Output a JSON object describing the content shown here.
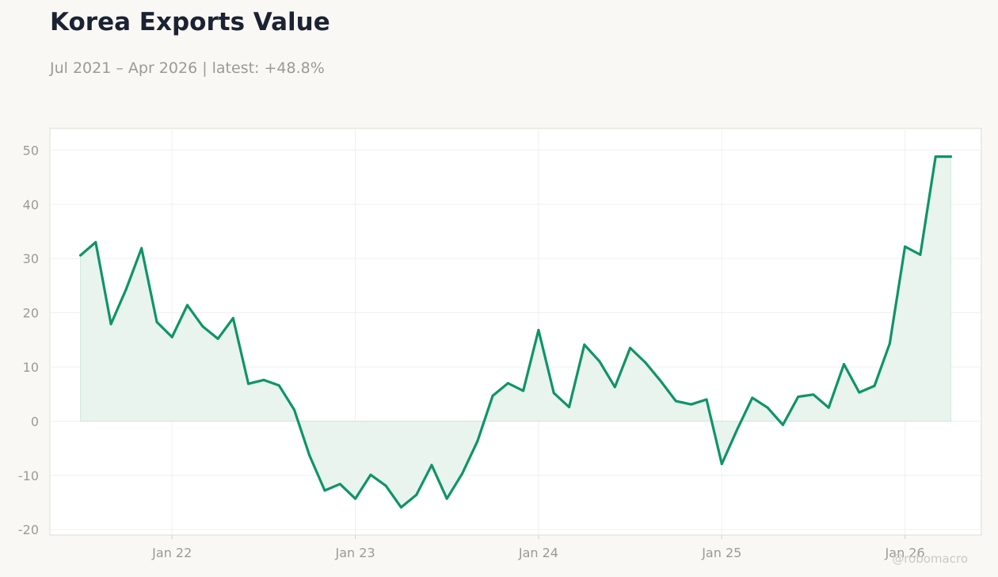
{
  "title": "Korea Exports Value",
  "subtitle": "Jul 2021 – Apr 2026 | latest: +48.8%",
  "watermark": "@robomacro",
  "colors": {
    "line": "#0f9468",
    "fill": "#e9f4ef",
    "background": "#f9f8f5",
    "plot_background": "#ffffff",
    "grid": "#f0f0ee",
    "frame": "#dddcd6"
  },
  "chart_data": {
    "type": "area",
    "title": "Korea Exports Value",
    "xlabel": "",
    "ylabel": "",
    "grid": true,
    "x_tick_labels": [
      "Jan 22",
      "Jan 23",
      "Jan 24",
      "Jan 25",
      "Jan 26"
    ],
    "y_ticks": [
      -20,
      -10,
      0,
      10,
      20,
      30,
      40,
      50
    ],
    "ylim": [
      -21,
      54
    ],
    "xlim": [
      "2021-05",
      "2026-06"
    ],
    "series": [
      {
        "x": [
          "2021-07",
          "2021-08",
          "2021-09",
          "2021-10",
          "2021-11",
          "2021-12",
          "2022-01",
          "2022-02",
          "2022-03",
          "2022-04",
          "2022-05",
          "2022-06",
          "2022-07",
          "2022-08",
          "2022-09",
          "2022-10",
          "2022-11",
          "2022-12",
          "2023-01",
          "2023-02",
          "2023-03",
          "2023-04",
          "2023-05",
          "2023-06",
          "2023-07",
          "2023-08",
          "2023-09",
          "2023-10",
          "2023-11",
          "2023-12",
          "2024-01",
          "2024-02",
          "2024-03",
          "2024-04",
          "2024-05",
          "2024-06",
          "2024-07",
          "2024-08",
          "2024-09",
          "2024-10",
          "2024-11",
          "2024-12",
          "2025-01",
          "2025-02",
          "2025-03",
          "2025-04",
          "2025-05",
          "2025-06",
          "2025-07",
          "2025-08",
          "2025-09",
          "2025-10",
          "2025-11",
          "2025-12",
          "2026-01",
          "2026-02",
          "2026-03",
          "2026-04"
        ],
        "values": [
          30.6,
          33.0,
          17.9,
          24.4,
          31.9,
          18.3,
          15.5,
          21.4,
          17.5,
          15.2,
          19.0,
          6.9,
          7.6,
          6.6,
          2.1,
          -6.3,
          -12.8,
          -11.6,
          -14.3,
          -9.9,
          -11.9,
          -15.9,
          -13.6,
          -8.1,
          -14.3,
          -9.7,
          -3.7,
          4.7,
          7.0,
          5.6,
          16.8,
          5.2,
          2.6,
          14.1,
          11.0,
          6.3,
          13.5,
          10.8,
          7.4,
          3.7,
          3.1,
          4.0,
          -7.9,
          -1.6,
          4.3,
          2.5,
          -0.7,
          4.5,
          4.9,
          2.5,
          10.5,
          5.3,
          6.5,
          14.3,
          32.2,
          30.7,
          48.8,
          48.8
        ]
      }
    ]
  }
}
